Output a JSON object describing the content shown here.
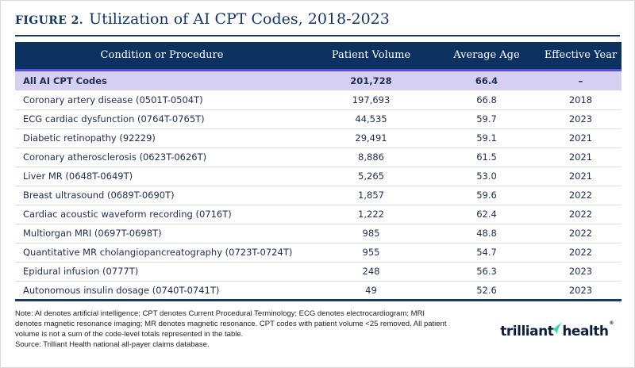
{
  "header": {
    "figure_label": "FIGURE 2."
  },
  "chart_data": {
    "type": "table",
    "title": "Utilization of AI CPT Codes, 2018-2023",
    "columns": [
      "Condition or Procedure",
      "Patient Volume",
      "Average Age",
      "Effective Year"
    ],
    "summary_row": {
      "condition": "All AI CPT Codes",
      "patient_volume": "201,728",
      "average_age": "66.4",
      "effective_year": "–"
    },
    "rows": [
      {
        "condition": "Coronary artery disease (0501T-0504T)",
        "patient_volume": "197,693",
        "average_age": "66.8",
        "effective_year": "2018"
      },
      {
        "condition": "ECG cardiac dysfunction (0764T-0765T)",
        "patient_volume": "44,535",
        "average_age": "59.7",
        "effective_year": "2023"
      },
      {
        "condition": "Diabetic retinopathy (92229)",
        "patient_volume": "29,491",
        "average_age": "59.1",
        "effective_year": "2021"
      },
      {
        "condition": "Coronary atherosclerosis (0623T-0626T)",
        "patient_volume": "8,886",
        "average_age": "61.5",
        "effective_year": "2021"
      },
      {
        "condition": "Liver MR (0648T-0649T)",
        "patient_volume": "5,265",
        "average_age": "53.0",
        "effective_year": "2021"
      },
      {
        "condition": "Breast ultrasound (0689T-0690T)",
        "patient_volume": "1,857",
        "average_age": "59.6",
        "effective_year": "2022"
      },
      {
        "condition": "Cardiac acoustic waveform recording (0716T)",
        "patient_volume": "1,222",
        "average_age": "62.4",
        "effective_year": "2022"
      },
      {
        "condition": "Multiorgan MRI (0697T-0698T)",
        "patient_volume": "985",
        "average_age": "48.8",
        "effective_year": "2022"
      },
      {
        "condition": "Quantitative MR cholangiopancreatography (0723T-0724T)",
        "patient_volume": "955",
        "average_age": "54.7",
        "effective_year": "2022"
      },
      {
        "condition": "Epidural infusion (0777T)",
        "patient_volume": "248",
        "average_age": "56.3",
        "effective_year": "2023"
      },
      {
        "condition": "Autonomous insulin dosage (0740T-0741T)",
        "patient_volume": "49",
        "average_age": "52.6",
        "effective_year": "2023"
      }
    ]
  },
  "footer": {
    "note_lines": [
      "Note: AI denotes artificial intelligence; CPT denotes Current Procedural Terminology; ECG denotes electrocardiogram; MRI",
      "denotes magnetic resonance imaging; MR denotes magnetic resonance. CPT codes with patient volume <25 removed. All patient",
      "volume is not a sum of the code-level totals represented in the table."
    ],
    "source_line": "Source: Trilliant Health national all-payer claims database.",
    "logo": {
      "word1": "trilliant",
      "word2": "health",
      "registered": "®"
    }
  },
  "colors": {
    "header_bg": "#0d3161",
    "accent_purple": "#5a4ee0",
    "summary_row_bg": "#d5cff1",
    "rule_navy": "#1a3a66",
    "cell_text": "#1d2d50",
    "title_text": "#14355f",
    "row_divider": "#dcdcdc",
    "logo_navy": "#0e1f3d",
    "logo_green": "#3fd89f"
  }
}
